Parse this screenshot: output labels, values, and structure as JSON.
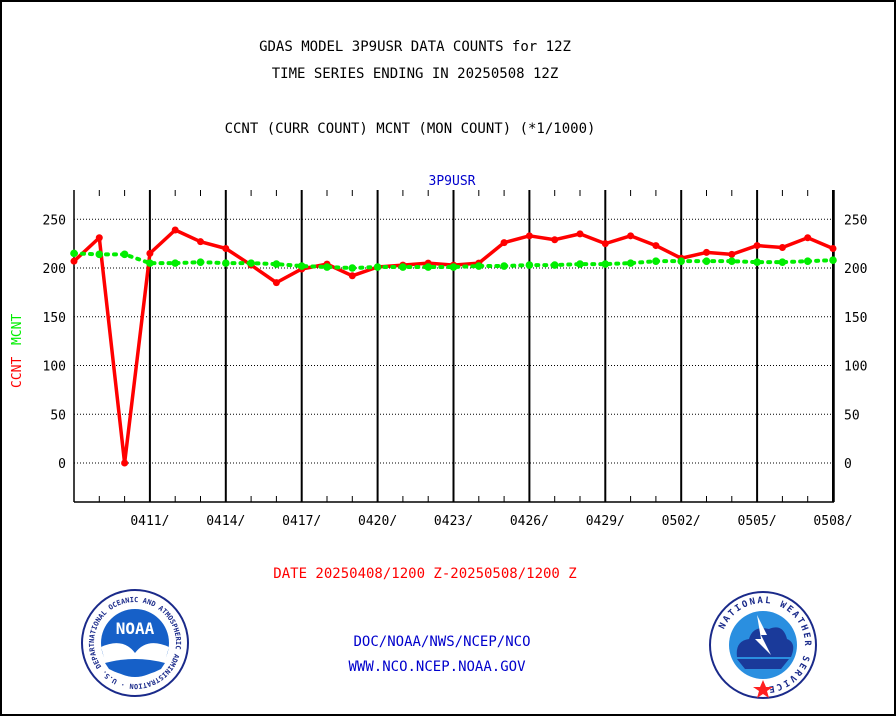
{
  "header": {
    "title_line1": "GDAS MODEL 3P9USR DATA COUNTS for 12Z",
    "title_line2": "TIME SERIES ENDING IN 20250508 12Z",
    "subtitle": "CCNT (CURR COUNT) MCNT (MON COUNT) (*1/1000)"
  },
  "footer": {
    "date_range": "DATE 20250408/1200 Z-20250508/1200 Z",
    "org": "DOC/NOAA/NWS/NCEP/NCO",
    "url": "WWW.NCO.NCEP.NOAA.GOV"
  },
  "logos": {
    "noaa": {
      "text": "NOAA",
      "ring_text": "NATIONAL OCEANIC AND ATMOSPHERIC ADMINISTRATION · U.S. DEPARTMENT OF COMMERCE"
    },
    "nws": {
      "ring_text": "NATIONAL WEATHER SERVICE"
    }
  },
  "colors": {
    "ccnt": "#ff0000",
    "mcnt": "#00ee00",
    "plot_title": "#0000cc",
    "footer_link": "#0000cc",
    "date_range": "#ff0000"
  },
  "chart_data": {
    "type": "line",
    "title": "3P9USR",
    "ylabel_series": [
      "CCNT",
      "MCNT"
    ],
    "ylim": [
      -40,
      280
    ],
    "yticks": [
      0,
      50,
      100,
      150,
      200,
      250
    ],
    "x": [
      "0408",
      "0409",
      "0410",
      "0411",
      "0412",
      "0413",
      "0414",
      "0415",
      "0416",
      "0417",
      "0418",
      "0419",
      "0420",
      "0421",
      "0422",
      "0423",
      "0424",
      "0425",
      "0426",
      "0427",
      "0428",
      "0429",
      "0430",
      "0501",
      "0502",
      "0503",
      "0504",
      "0505",
      "0506",
      "0507",
      "0508"
    ],
    "xtick_labels": [
      "0411/",
      "0414/",
      "0417/",
      "0420/",
      "0423/",
      "0426/",
      "0429/",
      "0502/",
      "0505/",
      "0508/"
    ],
    "series": [
      {
        "name": "CCNT",
        "style": "solid",
        "values": [
          207,
          231,
          0,
          215,
          239,
          227,
          220,
          203,
          185,
          199,
          204,
          192,
          201,
          203,
          205,
          203,
          205,
          226,
          233,
          229,
          235,
          225,
          233,
          223,
          210,
          216,
          214,
          223,
          221,
          231,
          220
        ]
      },
      {
        "name": "MCNT",
        "style": "dotted",
        "values": [
          215,
          214,
          214,
          205,
          205,
          206,
          205,
          205,
          204,
          202,
          201,
          200,
          201,
          201,
          201,
          201,
          202,
          202,
          203,
          203,
          204,
          204,
          205,
          207,
          207,
          207,
          207,
          206,
          206,
          207,
          208
        ]
      }
    ]
  }
}
